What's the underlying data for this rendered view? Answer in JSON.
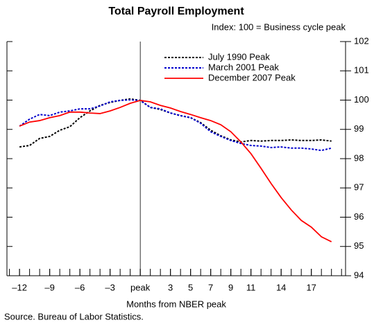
{
  "chart_data": {
    "type": "line",
    "title": "Total Payroll Employment",
    "subtitle": "Index: 100 = Business cycle peak",
    "x_label": "Months from NBER peak",
    "source": "Source. Bureau of Labor Statistics.",
    "x": [
      -12,
      -11,
      -10,
      -9,
      -8,
      -7,
      -6,
      -5,
      -4,
      -3,
      -2,
      -1,
      0,
      1,
      2,
      3,
      4,
      5,
      6,
      7,
      8,
      9,
      10,
      11,
      12,
      13,
      14,
      15,
      16,
      17,
      18,
      19
    ],
    "series": [
      {
        "name": "July 1990 Peak",
        "color": "#000000",
        "linestyle": "dotted",
        "values": [
          98.4,
          98.45,
          98.69,
          98.76,
          98.97,
          99.09,
          99.4,
          99.63,
          99.82,
          99.92,
          99.99,
          100.04,
          99.99,
          99.75,
          99.68,
          99.56,
          99.47,
          99.4,
          99.23,
          98.97,
          98.78,
          98.64,
          98.57,
          98.62,
          98.6,
          98.62,
          98.62,
          98.64,
          98.62,
          98.62,
          98.64,
          98.6
        ]
      },
      {
        "name": "March 2001 Peak",
        "color": "#0000cc",
        "linestyle": "dotted",
        "values": [
          99.11,
          99.35,
          99.51,
          99.47,
          99.59,
          99.63,
          99.7,
          99.7,
          99.8,
          99.94,
          99.99,
          100.01,
          99.99,
          99.75,
          99.7,
          99.56,
          99.47,
          99.4,
          99.21,
          98.92,
          98.76,
          98.62,
          98.52,
          98.45,
          98.43,
          98.38,
          98.4,
          98.36,
          98.36,
          98.33,
          98.28,
          98.36
        ]
      },
      {
        "name": "December 2007 Peak",
        "color": "#ff0000",
        "linestyle": "solid",
        "values": [
          99.11,
          99.25,
          99.3,
          99.4,
          99.47,
          99.59,
          99.59,
          99.56,
          99.54,
          99.63,
          99.75,
          99.89,
          99.99,
          99.94,
          99.82,
          99.73,
          99.61,
          99.51,
          99.4,
          99.3,
          99.16,
          98.92,
          98.57,
          98.17,
          97.67,
          97.15,
          96.67,
          96.25,
          95.89,
          95.66,
          95.33,
          95.16
        ]
      }
    ],
    "xlim": [
      -13.25,
      20.4
    ],
    "xticks": [
      {
        "value": -12,
        "label": "–12"
      },
      {
        "value": -9,
        "label": "–9"
      },
      {
        "value": -6,
        "label": "–6"
      },
      {
        "value": -3,
        "label": "–3"
      },
      {
        "value": 0,
        "label": "peak"
      },
      3,
      5,
      7,
      9,
      11,
      14,
      17
    ],
    "xminorticks": [
      -13,
      -12,
      -11,
      -10,
      -9,
      -8,
      -7,
      -6,
      -5,
      -4,
      -3,
      -2,
      -1,
      0,
      1,
      2,
      3,
      4,
      5,
      6,
      7,
      8,
      9,
      10,
      11,
      12,
      13,
      14,
      15,
      16,
      17,
      18,
      19,
      20
    ],
    "ylim": [
      94,
      102
    ],
    "yticks": [
      94,
      95,
      96,
      97,
      98,
      99,
      100,
      101,
      102
    ],
    "vline": 0,
    "grid": false,
    "legend": "top-right"
  }
}
